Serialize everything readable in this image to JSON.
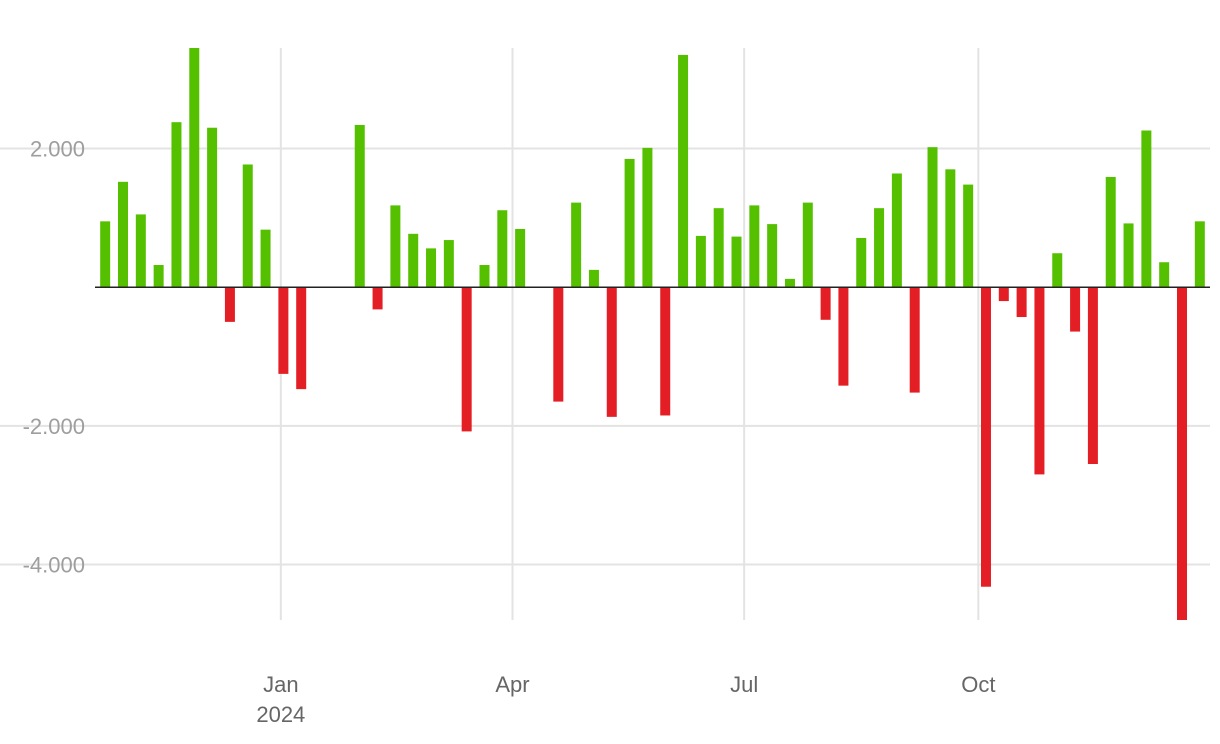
{
  "chart_data": {
    "type": "bar",
    "x_axis": {
      "ticks": [
        {
          "date": "2024-01-01",
          "label": "Jan",
          "sublabel": "2024"
        },
        {
          "date": "2024-04-01",
          "label": "Apr",
          "sublabel": ""
        },
        {
          "date": "2024-07-01",
          "label": "Jul",
          "sublabel": ""
        },
        {
          "date": "2024-10-01",
          "label": "Oct",
          "sublabel": ""
        }
      ],
      "range": [
        "2023-10-20",
        "2024-12-31"
      ]
    },
    "y_axis": {
      "ticks": [
        {
          "value": 2000,
          "label": "2.000"
        },
        {
          "value": -2000,
          "label": "-2.000"
        },
        {
          "value": -4000,
          "label": "-4.000"
        }
      ],
      "ylim": [
        -4800,
        3450
      ]
    },
    "grid": true,
    "colors": {
      "positive": "#55c000",
      "negative": "#e31e24",
      "grid": "#e3e3e3",
      "zero_line": "#222222"
    },
    "series": [
      {
        "x": [
          "2023-10-24",
          "2023-10-31",
          "2023-11-07",
          "2023-11-14",
          "2023-11-21",
          "2023-11-28",
          "2023-12-05",
          "2023-12-12",
          "2023-12-19",
          "2023-12-26",
          "2024-01-02",
          "2024-01-09",
          "2024-02-01",
          "2024-02-08",
          "2024-02-15",
          "2024-02-22",
          "2024-02-29",
          "2024-03-07",
          "2024-03-14",
          "2024-03-21",
          "2024-03-28",
          "2024-04-04",
          "2024-04-19",
          "2024-04-26",
          "2024-05-03",
          "2024-05-10",
          "2024-05-17",
          "2024-05-24",
          "2024-05-31",
          "2024-06-07",
          "2024-06-14",
          "2024-06-21",
          "2024-06-28",
          "2024-07-05",
          "2024-07-12",
          "2024-07-19",
          "2024-07-26",
          "2024-08-02",
          "2024-08-09",
          "2024-08-16",
          "2024-08-23",
          "2024-08-30",
          "2024-09-06",
          "2024-09-13",
          "2024-09-20",
          "2024-09-27",
          "2024-10-04",
          "2024-10-11",
          "2024-10-18",
          "2024-10-25",
          "2024-11-01",
          "2024-11-08",
          "2024-11-15",
          "2024-11-22",
          "2024-11-29",
          "2024-12-06",
          "2024-12-13",
          "2024-12-20",
          "2024-12-27"
        ],
        "values": [
          950,
          1520,
          1050,
          320,
          2380,
          3450,
          2300,
          -500,
          1770,
          830,
          -1250,
          -1470,
          2340,
          -320,
          1180,
          770,
          560,
          680,
          -2080,
          320,
          1110,
          840,
          -1650,
          1220,
          250,
          -1870,
          1850,
          2010,
          -1850,
          3350,
          740,
          1140,
          730,
          1180,
          910,
          120,
          1220,
          -470,
          -1420,
          710,
          1140,
          1640,
          -1520,
          2020,
          1700,
          1480,
          -4320,
          -200,
          -430,
          -2700,
          490,
          -640,
          -2550,
          1590,
          920,
          2260,
          360,
          -4800,
          950
        ]
      }
    ]
  }
}
